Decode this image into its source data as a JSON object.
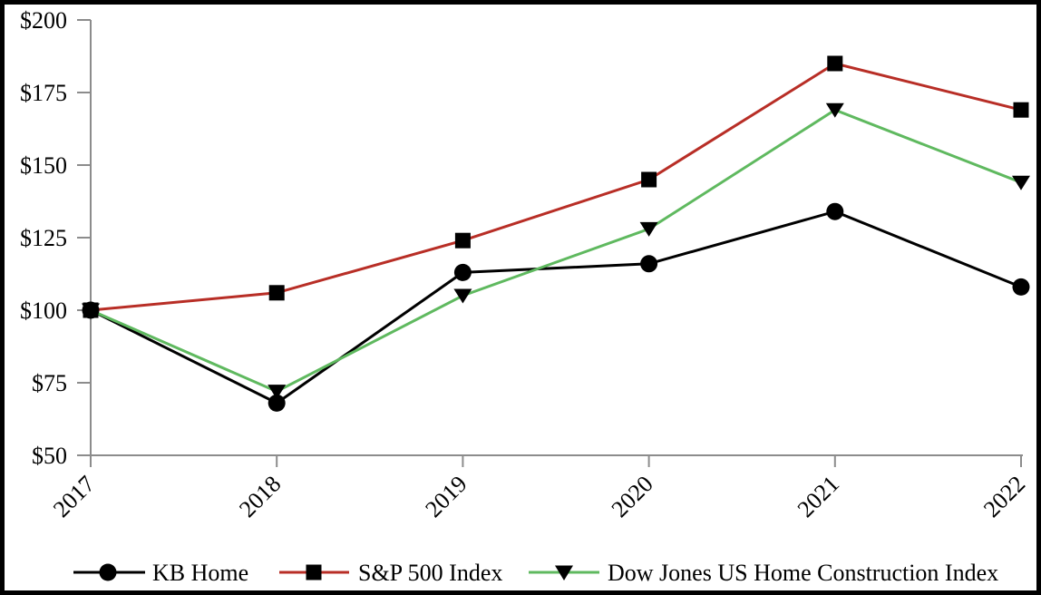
{
  "chart_data": {
    "type": "line",
    "title": "",
    "xlabel": "",
    "ylabel": "",
    "grid": false,
    "legend_position": "bottom",
    "axis_color": "#8c8c8c",
    "ylim": [
      50,
      200
    ],
    "y_ticks": [
      {
        "label": "$200",
        "value": 200
      },
      {
        "label": "$175",
        "value": 175
      },
      {
        "label": "$150",
        "value": 150
      },
      {
        "label": "$125",
        "value": 125
      },
      {
        "label": "$100",
        "value": 100
      },
      {
        "label": "$75",
        "value": 75
      },
      {
        "label": "$50",
        "value": 50
      }
    ],
    "categories": [
      "2017",
      "2018",
      "2019",
      "2020",
      "2021",
      "2022"
    ],
    "series": [
      {
        "name": "KB Home",
        "color": "#000000",
        "marker": "circle",
        "marker_color": "#000000",
        "values": [
          100,
          68,
          113,
          116,
          134,
          108
        ]
      },
      {
        "name": "S&P 500 Index",
        "color": "#b82e26",
        "marker": "square",
        "marker_color": "#000000",
        "values": [
          100,
          106,
          124,
          145,
          185,
          169
        ]
      },
      {
        "name": "Dow Jones US Home Construction Index",
        "color": "#5fb95f",
        "marker": "triangle-down",
        "marker_color": "#000000",
        "values": [
          100,
          72,
          105,
          128,
          169,
          144
        ]
      }
    ]
  }
}
